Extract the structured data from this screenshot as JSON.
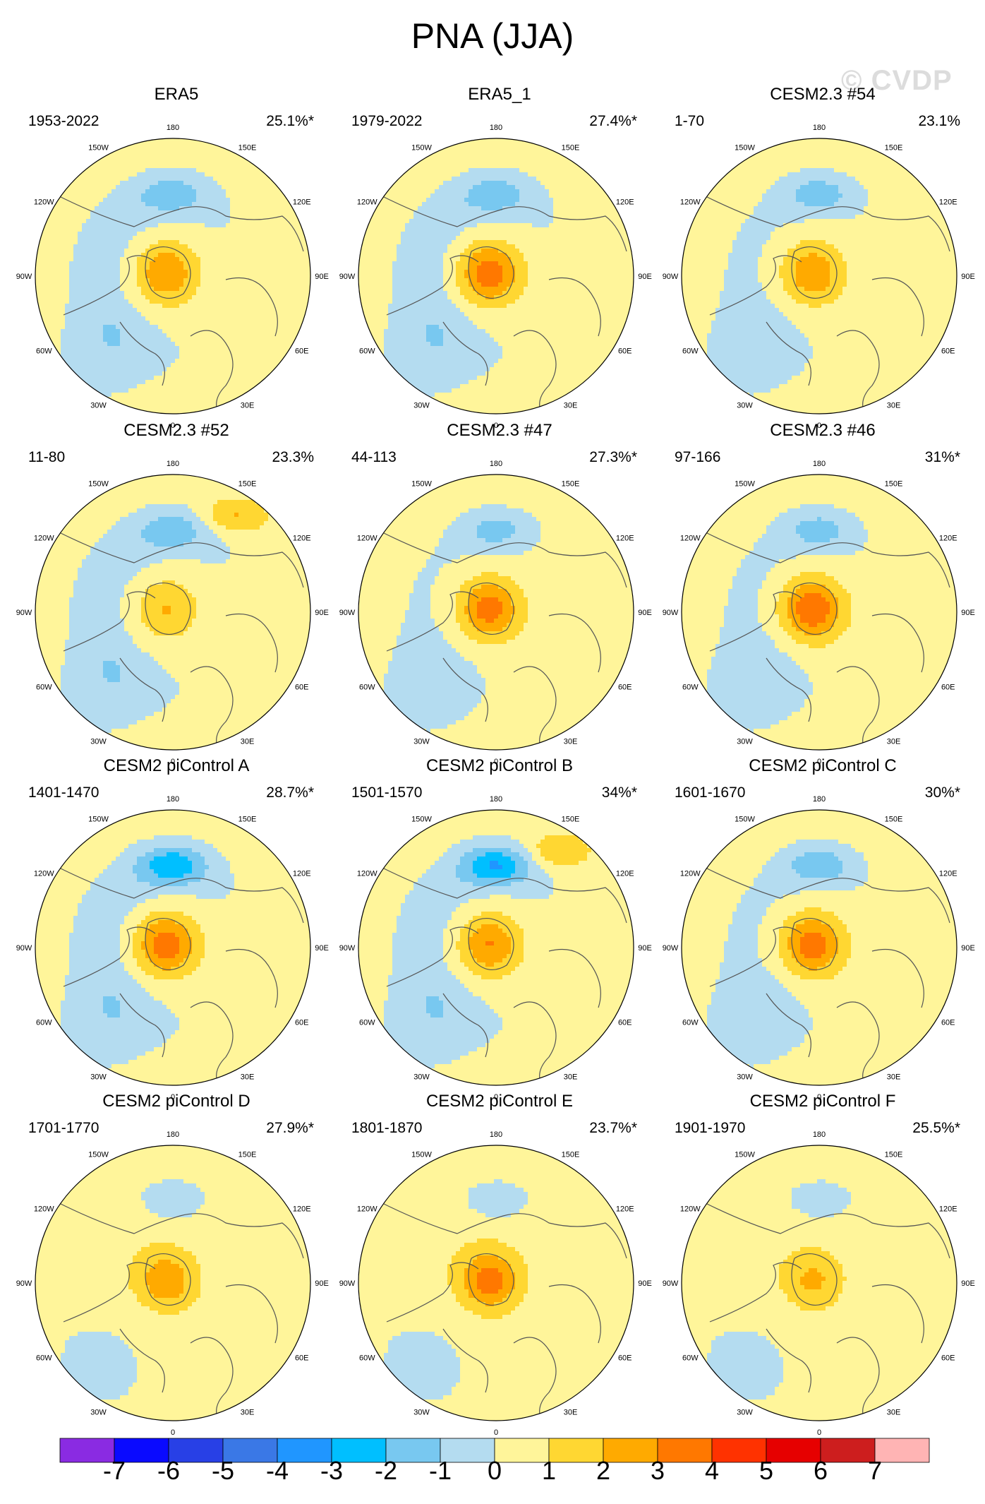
{
  "figure": {
    "title": "PNA (JJA)",
    "watermark": "© CVDP"
  },
  "panels": [
    {
      "title": "ERA5",
      "period": "1953-2022",
      "percent": "25.1%*",
      "pattern": {
        "pole": 2.5,
        "pac": -1.4,
        "ring": -1,
        "atl": -1,
        "asia": 0.4
      }
    },
    {
      "title": "ERA5_1",
      "period": "1979-2022",
      "percent": "27.4%*",
      "pattern": {
        "pole": 3.2,
        "pac": -1.4,
        "ring": -1,
        "atl": -1,
        "asia": 0.4
      }
    },
    {
      "title": "CESM2.3 #54",
      "period": "1-70",
      "percent": "23.1%",
      "pattern": {
        "pole": 2.4,
        "pac": -1.6,
        "ring": -0.6,
        "atl": -1,
        "asia": 0.5
      }
    },
    {
      "title": "CESM2.3 #52",
      "period": "11-80",
      "percent": "23.3%",
      "pattern": {
        "pole": 1.6,
        "pac": -1.5,
        "ring": -1,
        "atl": -1,
        "asia": 0.4,
        "npac": 1.7
      }
    },
    {
      "title": "CESM2.3 #47",
      "period": "44-113",
      "percent": "27.3%*",
      "pattern": {
        "pole": 3.1,
        "pac": -1.5,
        "ring": -0.5,
        "atl": -1,
        "asia": 0.5
      }
    },
    {
      "title": "CESM2.3 #46",
      "period": "97-166",
      "percent": "31%*",
      "pattern": {
        "pole": 3.5,
        "pac": -1.5,
        "ring": -0.6,
        "atl": -1,
        "asia": 0.4
      }
    },
    {
      "title": "CESM2 piControl A",
      "period": "1401-1470",
      "percent": "28.7%*",
      "pattern": {
        "pole": 3.2,
        "pac": -2.6,
        "ring": -1,
        "atl": -1,
        "asia": 0.4
      }
    },
    {
      "title": "CESM2 piControl B",
      "period": "1501-1570",
      "percent": "34%*",
      "pattern": {
        "pole": 2.6,
        "pac": -2.8,
        "ring": -1,
        "atl": -1,
        "asia": 0.4,
        "npac": 1.6
      }
    },
    {
      "title": "CESM2 piControl C",
      "period": "1601-1670",
      "percent": "30%*",
      "pattern": {
        "pole": 3.2,
        "pac": -1.8,
        "ring": -0.6,
        "atl": -1,
        "asia": 0.4
      }
    },
    {
      "title": "CESM2 piControl D",
      "period": "1701-1770",
      "percent": "27.9%*",
      "pattern": {
        "pole": 2.4,
        "pac": -1.7,
        "ring": 0.4,
        "atl": -1,
        "asia": 0.4
      }
    },
    {
      "title": "CESM2 piControl E",
      "period": "1801-1870",
      "percent": "23.7%*",
      "pattern": {
        "pole": 3.2,
        "pac": -1.6,
        "ring": 0.4,
        "atl": -1,
        "asia": 0.4
      }
    },
    {
      "title": "CESM2 piControl F",
      "period": "1901-1970",
      "percent": "25.5%*",
      "pattern": {
        "pole": 1.8,
        "pac": -1.6,
        "ring": 0.4,
        "atl": -1,
        "asia": 0.4
      }
    }
  ],
  "longitude_labels": [
    "180",
    "150E",
    "120E",
    "90E",
    "60E",
    "30E",
    "0",
    "30W",
    "60W",
    "90W",
    "120W",
    "150W"
  ],
  "colorbar": {
    "tick_labels": [
      "-7",
      "-6",
      "-5",
      "-4",
      "-3",
      "-2",
      "-1",
      "0",
      "1",
      "2",
      "3",
      "4",
      "5",
      "6",
      "7"
    ],
    "colors": [
      "#8a2be2",
      "#0a0aff",
      "#2840e6",
      "#3a78e6",
      "#2096ff",
      "#00bfff",
      "#78c8f0",
      "#b4dcf0",
      "#fff59a",
      "#ffd732",
      "#ffaa00",
      "#ff7800",
      "#ff3200",
      "#e60000",
      "#cd1e1e",
      "#ffb4b4"
    ]
  }
}
